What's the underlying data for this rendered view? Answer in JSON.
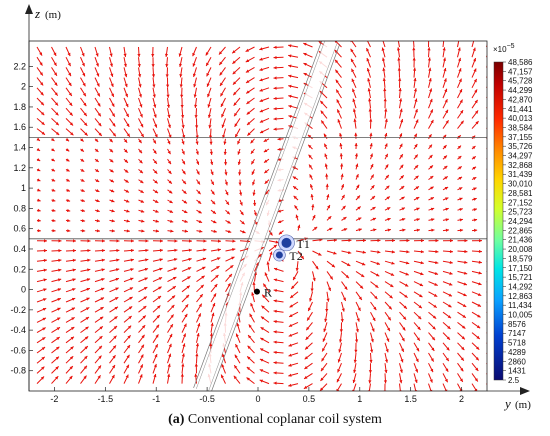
{
  "chart_data": {
    "type": "vector-field",
    "xlabel": "y",
    "xunit": "(m)",
    "ylabel": "z",
    "yunit": "(m)",
    "xlim": [
      -2.25,
      2.25
    ],
    "ylim": [
      -1.0,
      2.45
    ],
    "x_ticks": [
      "-2",
      "-1.5",
      "-1",
      "-0.5",
      "0",
      "0.5",
      "1",
      "1.5",
      "2"
    ],
    "x_tick_values": [
      -2,
      -1.5,
      -1,
      -0.5,
      0,
      0.5,
      1,
      1.5,
      2
    ],
    "y_ticks": [
      "-0.8",
      "-0.6",
      "-0.4",
      "-0.2",
      "0",
      "0.2",
      "0.4",
      "0.6",
      "0.8",
      "1",
      "1.2",
      "1.4",
      "1.6",
      "1.8",
      "2",
      "2.2"
    ],
    "y_tick_values": [
      -0.8,
      -0.6,
      -0.4,
      -0.2,
      0,
      0.2,
      0.4,
      0.6,
      0.8,
      1,
      1.2,
      1.4,
      1.6,
      1.8,
      2,
      2.2
    ],
    "layer_boundaries_z": [
      1.5,
      0.5
    ],
    "borehole": {
      "bottom_y": -0.55,
      "top_y": 0.72,
      "bottom_z": -1.0,
      "top_z": 2.45
    },
    "points": [
      {
        "label": "T1",
        "y": 0.28,
        "z": 0.46
      },
      {
        "label": "T2",
        "y": 0.21,
        "z": 0.34
      },
      {
        "label": "R",
        "y": -0.01,
        "z": -0.02
      }
    ],
    "colorbar": {
      "exponent_label": "×10",
      "exponent_power": "−5",
      "ticks": [
        "48,586",
        "47,157",
        "45,728",
        "44,299",
        "42,870",
        "41,441",
        "40,013",
        "38,584",
        "37,155",
        "35,726",
        "34,297",
        "32,868",
        "31,439",
        "30,010",
        "28,581",
        "27,152",
        "25,723",
        "24,294",
        "22,865",
        "21,436",
        "20,008",
        "18,579",
        "17,150",
        "15,721",
        "14,292",
        "12,863",
        "11,434",
        "10,005",
        "8576",
        "7147",
        "5718",
        "4289",
        "2860",
        "1431",
        "2.5"
      ],
      "colors": [
        "#7a0000",
        "#b30000",
        "#e60000",
        "#ff3300",
        "#ff8000",
        "#ffcc00",
        "#ccff33",
        "#66ff99",
        "#00e6e6",
        "#0099ff",
        "#0033cc",
        "#0a0a80"
      ]
    },
    "arrow_color": "#e8120c",
    "marker_colors": {
      "T": "#1f3f9e",
      "R": "#000000"
    }
  },
  "caption": {
    "letter": "(a)",
    "text": " Conventional coplanar coil system"
  }
}
